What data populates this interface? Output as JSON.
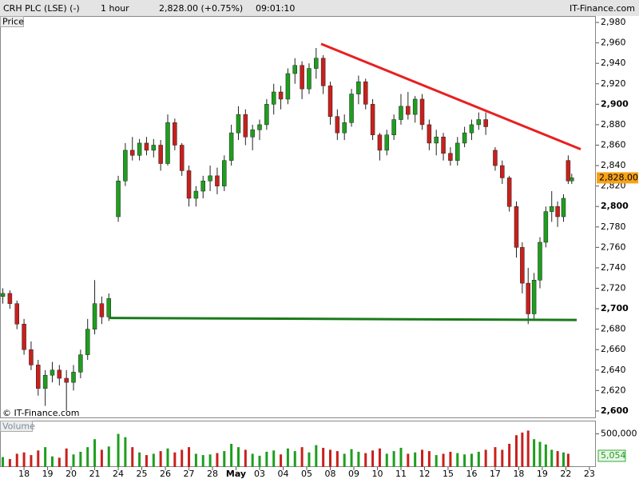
{
  "chart_data": {
    "type": "candlestick",
    "header": {
      "instrument": "CRH PLC (LSE) (-)",
      "interval": "1 hour",
      "quote": "2,828.00 (+0.75%)",
      "time": "09:01:10",
      "site": "IT-Finance.com"
    },
    "price_label": "Price",
    "volume_label": "Volume",
    "copyright": "© IT-Finance.com",
    "up_color": "#1e9e1e",
    "down_color": "#c8201c",
    "x": [
      -0.9,
      -0.6,
      -0.3,
      0,
      0.3,
      0.6,
      0.9,
      1.2,
      1.5,
      1.8,
      2.1,
      2.4,
      2.7,
      3,
      3.3,
      3.6,
      4,
      4.3,
      4.6,
      4.9,
      5.2,
      5.5,
      5.8,
      6.1,
      6.4,
      6.7,
      7,
      7.3,
      7.6,
      7.9,
      8.2,
      8.5,
      8.8,
      9.1,
      9.4,
      9.7,
      10,
      10.3,
      10.6,
      10.9,
      11.2,
      11.5,
      11.8,
      12.1,
      12.4,
      12.7,
      13,
      13.3,
      13.6,
      13.9,
      14.2,
      14.5,
      14.8,
      15.1,
      15.4,
      15.7,
      16,
      16.3,
      16.6,
      16.9,
      17.2,
      17.5,
      17.8,
      18.1,
      18.4,
      18.7,
      19,
      19.3,
      19.6,
      20,
      20.3,
      20.6,
      20.9,
      21.15,
      21.4,
      21.65,
      21.9,
      22.15,
      22.4,
      22.65,
      22.9,
      23.1,
      23.25
    ],
    "open": [
      2712,
      2715,
      2705,
      2685,
      2660,
      2645,
      2622,
      2635,
      2640,
      2632,
      2628,
      2638,
      2655,
      2680,
      2705,
      2692,
      2790,
      2825,
      2855,
      2850,
      2862,
      2855,
      2860,
      2842,
      2882,
      2860,
      2835,
      2808,
      2815,
      2825,
      2830,
      2820,
      2845,
      2872,
      2890,
      2868,
      2875,
      2880,
      2900,
      2912,
      2905,
      2930,
      2938,
      2915,
      2935,
      2945,
      2918,
      2888,
      2872,
      2882,
      2910,
      2922,
      2900,
      2870,
      2855,
      2870,
      2885,
      2898,
      2890,
      2905,
      2880,
      2862,
      2868,
      2852,
      2845,
      2862,
      2872,
      2880,
      2885,
      2855,
      2840,
      2828,
      2800,
      2760,
      2725,
      2695,
      2728,
      2765,
      2795,
      2800,
      2790,
      2845,
      2825
    ],
    "high": [
      2720,
      2718,
      2708,
      2690,
      2668,
      2650,
      2640,
      2648,
      2645,
      2640,
      2645,
      2660,
      2690,
      2728,
      2712,
      2715,
      2830,
      2862,
      2868,
      2866,
      2868,
      2866,
      2865,
      2890,
      2886,
      2862,
      2840,
      2820,
      2830,
      2840,
      2838,
      2850,
      2880,
      2898,
      2895,
      2880,
      2885,
      2905,
      2920,
      2918,
      2935,
      2945,
      2942,
      2940,
      2955,
      2948,
      2922,
      2895,
      2890,
      2915,
      2928,
      2925,
      2905,
      2872,
      2875,
      2890,
      2910,
      2912,
      2908,
      2910,
      2885,
      2875,
      2872,
      2858,
      2868,
      2878,
      2885,
      2892,
      2892,
      2858,
      2845,
      2830,
      2805,
      2765,
      2740,
      2735,
      2770,
      2800,
      2815,
      2805,
      2812,
      2850,
      2832
    ],
    "low": [
      2705,
      2700,
      2680,
      2655,
      2640,
      2615,
      2605,
      2628,
      2625,
      2600,
      2620,
      2632,
      2650,
      2675,
      2685,
      2688,
      2785,
      2820,
      2845,
      2845,
      2850,
      2848,
      2835,
      2840,
      2855,
      2830,
      2800,
      2800,
      2808,
      2815,
      2812,
      2815,
      2840,
      2865,
      2860,
      2855,
      2865,
      2875,
      2890,
      2895,
      2900,
      2920,
      2905,
      2910,
      2925,
      2910,
      2880,
      2865,
      2865,
      2878,
      2900,
      2895,
      2865,
      2845,
      2850,
      2865,
      2880,
      2885,
      2882,
      2875,
      2855,
      2850,
      2845,
      2840,
      2840,
      2858,
      2865,
      2875,
      2870,
      2835,
      2822,
      2795,
      2750,
      2715,
      2685,
      2690,
      2720,
      2760,
      2785,
      2780,
      2785,
      2822,
      2822
    ],
    "close": [
      2715,
      2705,
      2685,
      2660,
      2645,
      2622,
      2635,
      2640,
      2632,
      2628,
      2638,
      2655,
      2680,
      2705,
      2692,
      2710,
      2825,
      2855,
      2850,
      2862,
      2855,
      2860,
      2842,
      2882,
      2860,
      2835,
      2808,
      2815,
      2825,
      2830,
      2820,
      2845,
      2872,
      2890,
      2868,
      2875,
      2880,
      2900,
      2912,
      2905,
      2930,
      2938,
      2915,
      2935,
      2945,
      2918,
      2888,
      2872,
      2882,
      2910,
      2922,
      2900,
      2870,
      2855,
      2870,
      2885,
      2898,
      2890,
      2905,
      2880,
      2862,
      2868,
      2852,
      2845,
      2862,
      2872,
      2880,
      2885,
      2878,
      2840,
      2828,
      2800,
      2760,
      2725,
      2695,
      2728,
      2765,
      2795,
      2800,
      2790,
      2808,
      2825,
      2828
    ],
    "volume": [
      150000,
      120000,
      200000,
      220000,
      180000,
      250000,
      300000,
      160000,
      140000,
      280000,
      190000,
      230000,
      300000,
      420000,
      260000,
      310000,
      500000,
      450000,
      300000,
      220000,
      180000,
      200000,
      240000,
      280000,
      220000,
      260000,
      300000,
      200000,
      180000,
      190000,
      210000,
      240000,
      350000,
      300000,
      260000,
      200000,
      170000,
      230000,
      250000,
      190000,
      280000,
      240000,
      300000,
      220000,
      330000,
      290000,
      260000,
      240000,
      200000,
      270000,
      230000,
      210000,
      250000,
      280000,
      200000,
      240000,
      290000,
      200000,
      220000,
      260000,
      240000,
      180000,
      200000,
      230000,
      210000,
      190000,
      200000,
      230000,
      260000,
      300000,
      260000,
      350000,
      480000,
      520000,
      550000,
      420000,
      380000,
      340000,
      260000,
      240000,
      220000,
      200000,
      5054
    ],
    "trendlines": [
      {
        "color": "#e82020",
        "x": [
          12.61,
          23.63
        ],
        "y": [
          2959,
          2856
        ]
      },
      {
        "color": "#1a7a1a",
        "x": [
          3.63,
          23.46
        ],
        "y": [
          2691,
          2689
        ]
      }
    ],
    "last_price": {
      "value": 2828,
      "label": "2,828.00"
    },
    "last_volume": {
      "value": 5054,
      "label": "5,054"
    },
    "xlim": [
      -1.02,
      24.24
    ],
    "xticks": [
      {
        "value": 0,
        "label": "18"
      },
      {
        "value": 1,
        "label": "19"
      },
      {
        "value": 2,
        "label": "20"
      },
      {
        "value": 3,
        "label": "21"
      },
      {
        "value": 4,
        "label": "24"
      },
      {
        "value": 5,
        "label": "25"
      },
      {
        "value": 6,
        "label": "26"
      },
      {
        "value": 7,
        "label": "27"
      },
      {
        "value": 8,
        "label": "28"
      },
      {
        "value": 9,
        "label": "May"
      },
      {
        "value": 10,
        "label": "03"
      },
      {
        "value": 11,
        "label": "04"
      },
      {
        "value": 12,
        "label": "05"
      },
      {
        "value": 13,
        "label": "08"
      },
      {
        "value": 14,
        "label": "09"
      },
      {
        "value": 15,
        "label": "10"
      },
      {
        "value": 16,
        "label": "11"
      },
      {
        "value": 17,
        "label": "12"
      },
      {
        "value": 18,
        "label": "15"
      },
      {
        "value": 19,
        "label": "16"
      },
      {
        "value": 20,
        "label": "17"
      },
      {
        "value": 21,
        "label": "18"
      },
      {
        "value": 22,
        "label": "19"
      },
      {
        "value": 23,
        "label": "22"
      },
      {
        "value": 24,
        "label": "23"
      }
    ],
    "ylim": [
      2593.7,
      2986.3
    ],
    "yticks": [
      {
        "value": 2600,
        "label": "2,600"
      },
      {
        "value": 2620,
        "label": "2,620"
      },
      {
        "value": 2640,
        "label": "2,640"
      },
      {
        "value": 2660,
        "label": "2,660"
      },
      {
        "value": 2680,
        "label": "2,680"
      },
      {
        "value": 2700,
        "label": "2,700"
      },
      {
        "value": 2720,
        "label": "2,720"
      },
      {
        "value": 2740,
        "label": "2,740"
      },
      {
        "value": 2760,
        "label": "2,760"
      },
      {
        "value": 2780,
        "label": "2,780"
      },
      {
        "value": 2800,
        "label": "2,800"
      },
      {
        "value": 2820,
        "label": "2,820"
      },
      {
        "value": 2840,
        "label": "2,840"
      },
      {
        "value": 2860,
        "label": "2,860"
      },
      {
        "value": 2880,
        "label": "2,880"
      },
      {
        "value": 2900,
        "label": "2,900"
      },
      {
        "value": 2920,
        "label": "2,920"
      },
      {
        "value": 2940,
        "label": "2,940"
      },
      {
        "value": 2960,
        "label": "2,960"
      },
      {
        "value": 2980,
        "label": "2,980"
      }
    ],
    "vlim": [
      0,
      700000
    ],
    "vticks": [
      {
        "value": 500000,
        "label": "500,000"
      }
    ]
  }
}
